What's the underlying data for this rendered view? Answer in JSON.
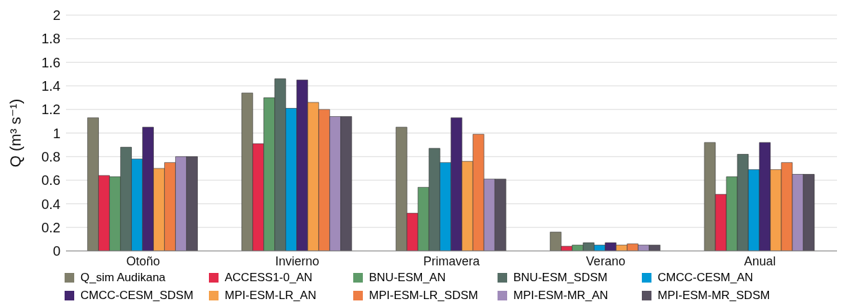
{
  "chart_data": {
    "type": "bar",
    "ylabel": "Q (m³ s⁻¹)",
    "categories": [
      "Otoño",
      "Invierno",
      "Primavera",
      "Verano",
      "Anual"
    ],
    "series": [
      {
        "name": "Q_sim Audikana",
        "color": "#807f6b",
        "values": [
          1.13,
          1.34,
          1.05,
          0.16,
          0.92
        ]
      },
      {
        "name": "ACCESS1-0_AN",
        "color": "#e32b4b",
        "values": [
          0.64,
          0.91,
          0.32,
          0.04,
          0.48
        ]
      },
      {
        "name": "BNU-ESM_AN",
        "color": "#5e9b69",
        "values": [
          0.63,
          1.3,
          0.54,
          0.05,
          0.63
        ]
      },
      {
        "name": "BNU-ESM_SDSM",
        "color": "#566e66",
        "values": [
          0.88,
          1.46,
          0.87,
          0.07,
          0.82
        ]
      },
      {
        "name": "CMCC-CESM_AN",
        "color": "#0099d6",
        "values": [
          0.78,
          1.21,
          0.75,
          0.05,
          0.69
        ]
      },
      {
        "name": "CMCC-CESM_SDSM",
        "color": "#43266f",
        "values": [
          1.05,
          1.45,
          1.13,
          0.07,
          0.92
        ]
      },
      {
        "name": "MPI-ESM-LR_AN",
        "color": "#f5a04b",
        "values": [
          0.7,
          1.26,
          0.76,
          0.05,
          0.69
        ]
      },
      {
        "name": "MPI-ESM-LR_SDSM",
        "color": "#ee7d44",
        "values": [
          0.75,
          1.2,
          0.99,
          0.06,
          0.75
        ]
      },
      {
        "name": "MPI-ESM-MR_AN",
        "color": "#a08bba",
        "values": [
          0.8,
          1.14,
          0.61,
          0.05,
          0.65
        ]
      },
      {
        "name": "MPI-ESM-MR_SDSM",
        "color": "#57505f",
        "values": [
          0.8,
          1.14,
          0.61,
          0.05,
          0.65
        ]
      }
    ],
    "ylim": [
      0,
      2
    ],
    "yticks": [
      0,
      0.2,
      0.4,
      0.6,
      0.8,
      1,
      1.2,
      1.4,
      1.6,
      1.8,
      2
    ],
    "grid": "y",
    "legend": "bottom"
  }
}
